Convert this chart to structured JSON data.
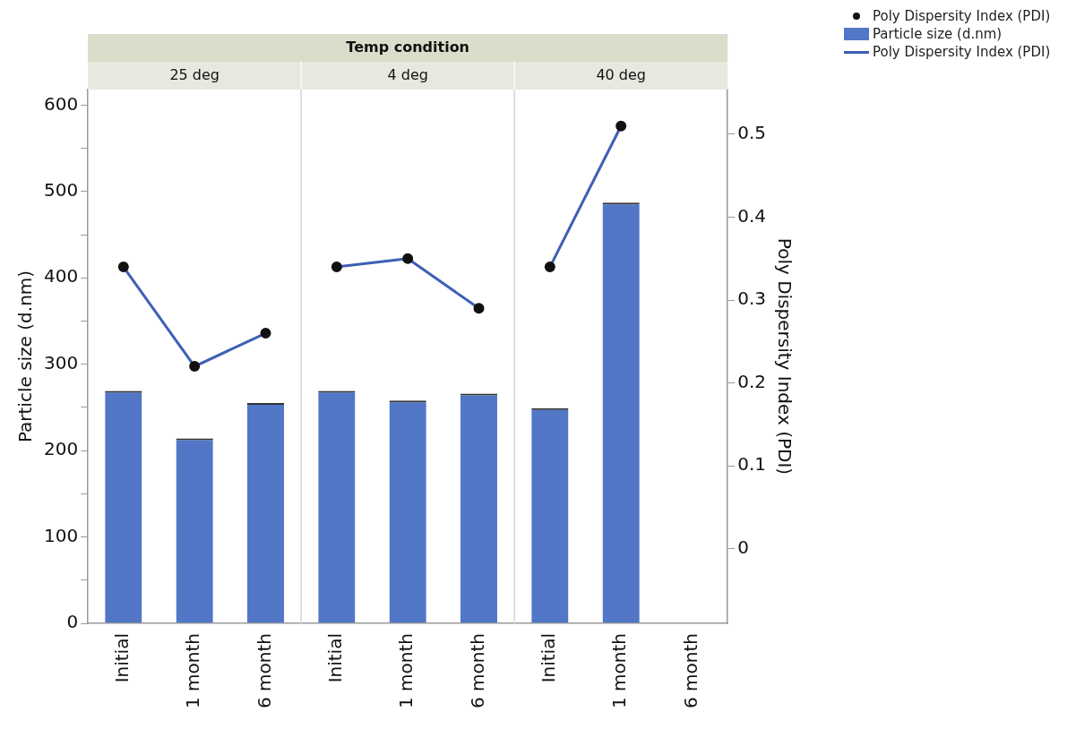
{
  "chart_data": {
    "type": "bar",
    "title": "Temp condition",
    "annotations": [
      "25 deg",
      "4 deg",
      "40 deg"
    ],
    "categories": [
      "Initial",
      "1 month",
      "6 month",
      "Initial",
      "1 month",
      "6 month",
      "Initial",
      "1 month",
      "6 month"
    ],
    "series": [
      {
        "name": "Particle size (d.nm)",
        "color": "#5177c6",
        "values": [
          269,
          214,
          255,
          269,
          258,
          266,
          249,
          487,
          null
        ]
      },
      {
        "name": "Poly Dispersity Index (PDI)",
        "type": "line",
        "axis": "y2",
        "color": "#3d5fb5",
        "values": [
          0.34,
          0.22,
          0.26,
          0.34,
          0.35,
          0.29,
          0.34,
          0.51,
          null
        ]
      }
    ],
    "ylabel": "Particle size (d.nm)",
    "y2label": "Poly Dispersity Index (PDI)",
    "ylim": [
      0,
      618
    ],
    "yticks": [
      0,
      {
        "value": 50,
        "label": null
      },
      100,
      {
        "value": 150,
        "label": null
      },
      200,
      {
        "value": 250,
        "label": null
      },
      300,
      {
        "value": 350,
        "label": null
      },
      400,
      {
        "value": 450,
        "label": null
      },
      500,
      {
        "value": 550,
        "label": null
      },
      600
    ],
    "y2lim": [
      -0.09,
      0.554
    ],
    "y2ticks": [
      0,
      0.1,
      0.2,
      0.3,
      0.4,
      0.5
    ],
    "marker": "circle",
    "legend": "top right"
  }
}
